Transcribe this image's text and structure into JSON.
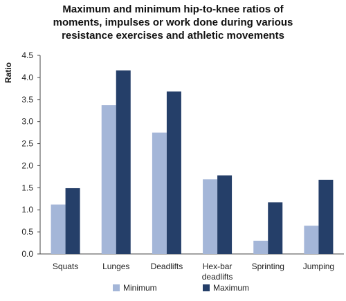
{
  "chart_data": {
    "type": "bar",
    "title_lines": [
      "Maximum and minimum hip-to-knee ratios of",
      "moments, impulses or work done during various",
      "resistance exercises and athletic movements"
    ],
    "xlabel": "",
    "ylabel": "Ratio",
    "ylim": [
      0,
      4.5
    ],
    "yticks": [
      0.0,
      0.5,
      1.0,
      1.5,
      2.0,
      2.5,
      3.0,
      3.5,
      4.0,
      4.5
    ],
    "ytick_labels": [
      "0.0",
      "0.5",
      "1.0",
      "1.5",
      "2.0",
      "2.5",
      "3.0",
      "3.5",
      "4.0",
      "4.5"
    ],
    "categories": [
      [
        "Squats"
      ],
      [
        "Lunges"
      ],
      [
        "Deadlifts"
      ],
      [
        "Hex-bar",
        "deadlifts"
      ],
      [
        "Sprinting"
      ],
      [
        "Jumping"
      ]
    ],
    "series": [
      {
        "name": "Minimum",
        "color": "#a4b6d8",
        "values": [
          1.12,
          3.37,
          2.75,
          1.69,
          0.3,
          0.64
        ]
      },
      {
        "name": "Maximum",
        "color": "#253f69",
        "values": [
          1.49,
          4.16,
          3.68,
          1.78,
          1.17,
          1.68
        ]
      }
    ],
    "grid": false,
    "legend_position": "bottom"
  }
}
